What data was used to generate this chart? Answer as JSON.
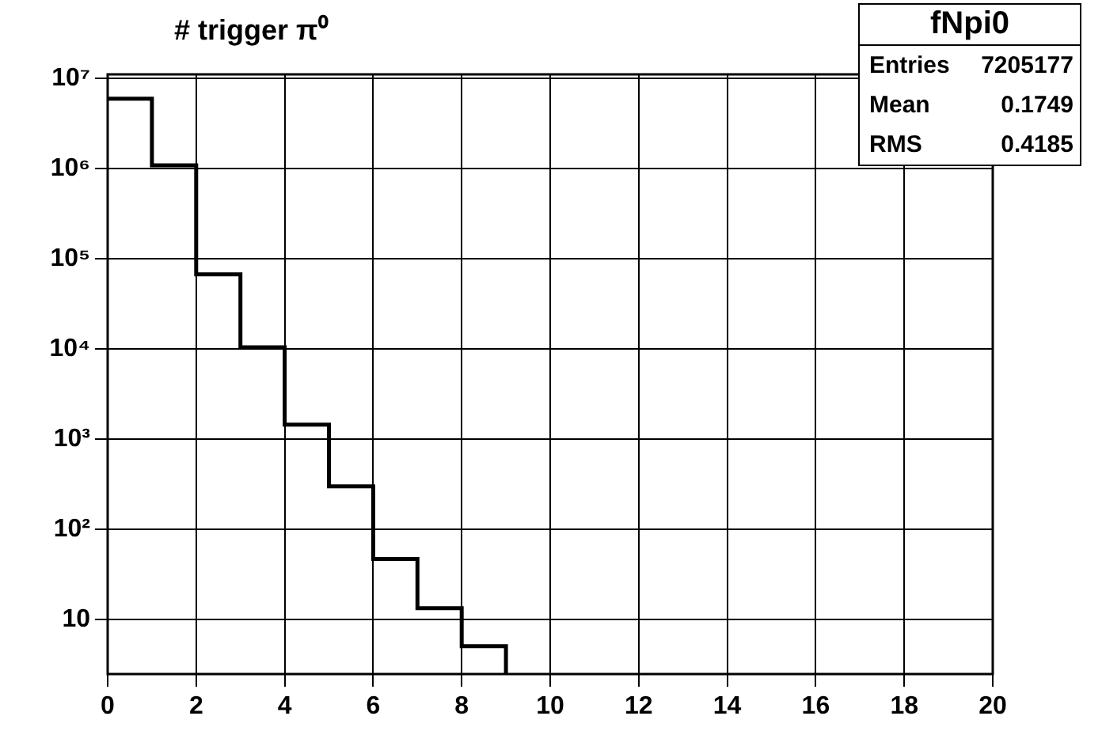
{
  "chart_data": {
    "type": "histogram",
    "title": "# trigger π⁰",
    "bins": [
      0,
      1,
      2,
      3,
      4,
      5,
      6,
      7,
      8,
      9
    ],
    "values": [
      5900000,
      1080000,
      67000,
      10400,
      1450,
      300,
      47,
      13.4,
      5.1
    ],
    "color": "#000000",
    "xlim": [
      0,
      20
    ],
    "xticks": [
      0,
      2,
      4,
      6,
      8,
      10,
      12,
      14,
      16,
      18,
      20
    ],
    "ylim": [
      2.5,
      11000000
    ],
    "yticks": [
      {
        "value": 10,
        "label": "10"
      },
      {
        "value": 100,
        "label": "10²"
      },
      {
        "value": 1000,
        "label": "10³"
      },
      {
        "value": 10000,
        "label": "10⁴"
      },
      {
        "value": 100000,
        "label": "10⁵"
      },
      {
        "value": 1000000,
        "label": "10⁶"
      },
      {
        "value": 10000000,
        "label": "10⁷"
      }
    ],
    "log": "y",
    "grid": true,
    "legend": false,
    "annotations": [
      "fNpi0",
      "Entries",
      "7205177",
      "Mean",
      "0.1749",
      "RMS",
      "0.4185"
    ]
  }
}
